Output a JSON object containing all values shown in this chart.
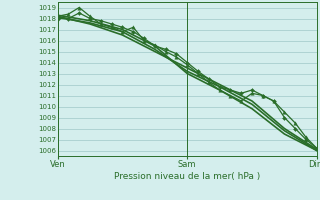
{
  "bg_color": "#d4eeed",
  "grid_color": "#a8cece",
  "line_color": "#2a6e2a",
  "xlabel": "Pression niveau de la mer( hPa )",
  "xtick_labels": [
    "Ven",
    "Sam",
    "Dim"
  ],
  "xtick_pos": [
    0,
    24,
    48
  ],
  "ylim": [
    1005.5,
    1019.5
  ],
  "yticks": [
    1006,
    1007,
    1008,
    1009,
    1010,
    1011,
    1012,
    1013,
    1014,
    1015,
    1016,
    1017,
    1018,
    1019
  ],
  "lines": [
    {
      "x": [
        0,
        6,
        12,
        18,
        24,
        30,
        36,
        42,
        48
      ],
      "y": [
        1018.3,
        1017.8,
        1017.0,
        1015.5,
        1013.0,
        1011.5,
        1009.8,
        1007.5,
        1006.0
      ],
      "marker": "",
      "ms": 0,
      "lw": 1.2
    },
    {
      "x": [
        0,
        6,
        12,
        18,
        24,
        30,
        36,
        42,
        48
      ],
      "y": [
        1018.1,
        1017.6,
        1016.8,
        1015.2,
        1013.2,
        1011.8,
        1010.2,
        1007.8,
        1006.0
      ],
      "marker": "",
      "ms": 0,
      "lw": 1.2
    },
    {
      "x": [
        0,
        6,
        12,
        18,
        24,
        30,
        36,
        42,
        48
      ],
      "y": [
        1018.2,
        1017.5,
        1016.5,
        1015.0,
        1013.5,
        1012.0,
        1010.5,
        1008.0,
        1006.1
      ],
      "marker": "",
      "ms": 0,
      "lw": 1.2
    },
    {
      "x": [
        0,
        2,
        4,
        6,
        8,
        10,
        12,
        14,
        16,
        18,
        20,
        22,
        24,
        26,
        28,
        30,
        32,
        34,
        36,
        38,
        40,
        42,
        44,
        46,
        48
      ],
      "y": [
        1018.2,
        1018.4,
        1019.0,
        1018.2,
        1017.5,
        1017.2,
        1016.8,
        1017.2,
        1016.0,
        1015.6,
        1015.0,
        1014.5,
        1013.8,
        1013.0,
        1012.2,
        1011.5,
        1011.0,
        1010.5,
        1011.2,
        1011.0,
        1010.5,
        1009.5,
        1008.5,
        1007.2,
        1006.2
      ],
      "marker": "^",
      "ms": 2.5,
      "lw": 0.9
    },
    {
      "x": [
        0,
        2,
        4,
        6,
        8,
        10,
        12,
        14,
        16,
        18,
        20,
        22,
        24,
        26,
        28,
        30,
        32,
        34,
        36,
        38,
        40,
        42,
        44,
        46,
        48
      ],
      "y": [
        1018.0,
        1018.0,
        1018.5,
        1018.0,
        1017.8,
        1017.5,
        1017.2,
        1016.8,
        1016.2,
        1015.5,
        1015.2,
        1014.8,
        1014.0,
        1013.2,
        1012.5,
        1011.8,
        1011.5,
        1011.2,
        1011.5,
        1011.0,
        1010.5,
        1009.0,
        1008.0,
        1007.0,
        1006.2
      ],
      "marker": "D",
      "ms": 2.0,
      "lw": 0.9
    }
  ]
}
